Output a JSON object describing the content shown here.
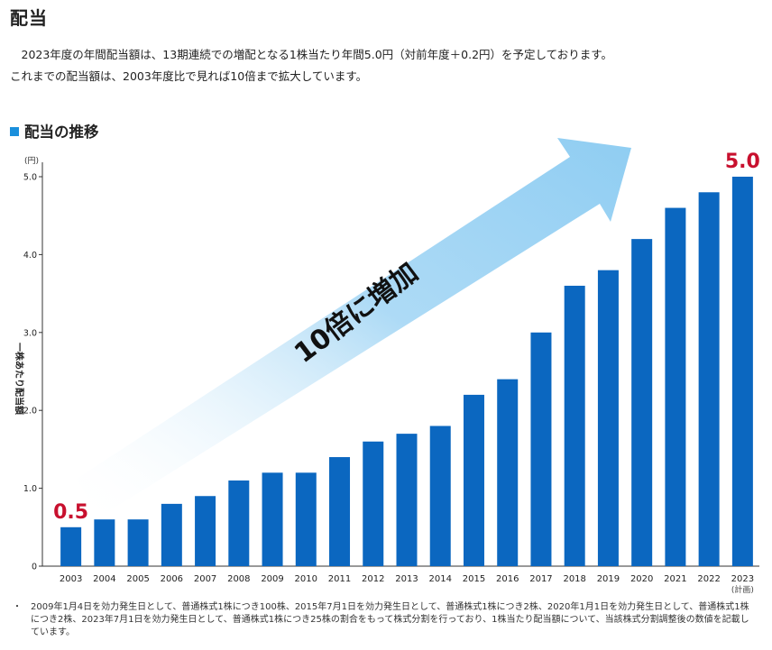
{
  "page": {
    "title": "配当",
    "intro_line1": "　2023年度の年間配当額は、13期連続での増配となる1株当たり年間5.0円（対前年度＋0.2円）を予定しております。",
    "intro_line2": "これまでの配当額は、2003年度比で見れば10倍まで拡大しています。",
    "chart_heading": "配当の推移",
    "footnote_bullet": "・",
    "footnote": "2009年1月4日を効力発生日として、普通株式1株につき100株、2015年7月1日を効力発生日として、普通株式1株につき2株、2020年1月1日を効力発生日として、普通株式1株につき2株、2023年7月1日を効力発生日として、普通株式1株につき25株の割合をもって株式分割を行っており、1株当たり配当額について、当該株式分割調整後の数値を記載しています。"
  },
  "chart_data": {
    "type": "bar",
    "categories": [
      "2003",
      "2004",
      "2005",
      "2006",
      "2007",
      "2008",
      "2009",
      "2010",
      "2011",
      "2012",
      "2013",
      "2014",
      "2015",
      "2016",
      "2017",
      "2018",
      "2019",
      "2020",
      "2021",
      "2022",
      "2023"
    ],
    "category_notes": [
      "",
      "",
      "",
      "",
      "",
      "",
      "",
      "",
      "",
      "",
      "",
      "",
      "",
      "",
      "",
      "",
      "",
      "",
      "",
      "",
      "(計画)"
    ],
    "series": [
      {
        "values": [
          0.5,
          0.6,
          0.6,
          0.8,
          0.9,
          1.1,
          1.2,
          1.2,
          1.4,
          1.6,
          1.7,
          1.8,
          2.2,
          2.4,
          3.0,
          3.6,
          3.8,
          4.2,
          4.6,
          4.8,
          5.0
        ]
      }
    ],
    "ylabel": "一株あたり配当額",
    "yunit": "(円)",
    "ylim": [
      0,
      5
    ],
    "yticks": [
      "0",
      "1.0",
      "2.0",
      "3.0",
      "4.0",
      "5.0"
    ],
    "data_labels": [
      {
        "category": "2003",
        "text": "0.5"
      },
      {
        "category": "2023",
        "text": "5.0"
      }
    ],
    "annotation": "10倍に増加",
    "grid": false,
    "colors": {
      "bar": "#0b67c0",
      "highlight": "#c8102e",
      "arrow": "#9fd4f4"
    }
  }
}
